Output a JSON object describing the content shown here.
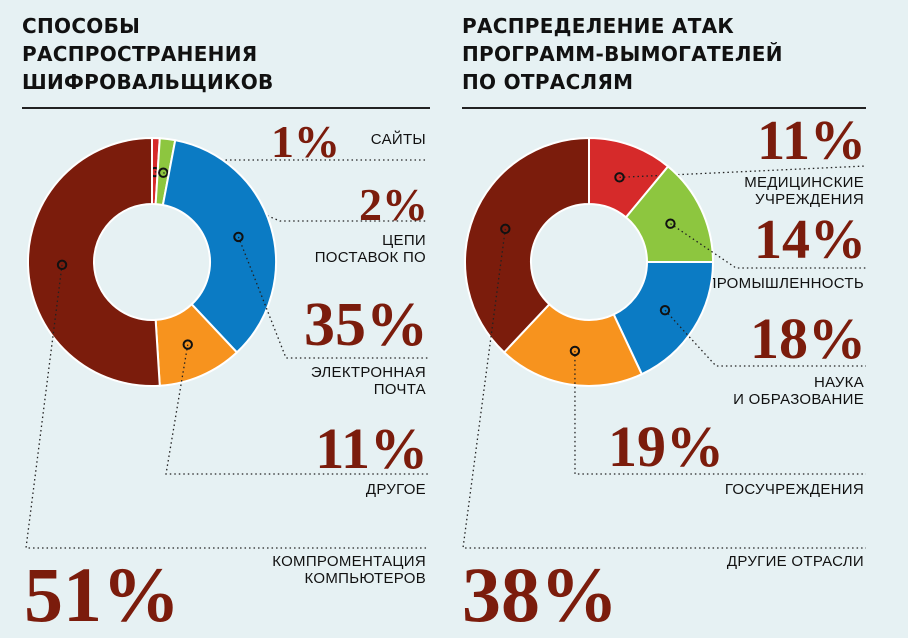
{
  "chart_data": [
    {
      "type": "pie",
      "title": [
        "СПОСОБЫ",
        "РАСПРОСТРАНЕНИЯ",
        "ШИФРОВАЛЬЩИКОВ"
      ],
      "slices": [
        {
          "pct": "1%",
          "value": 1,
          "label": [
            "САЙТЫ"
          ],
          "color": "#d62a2a"
        },
        {
          "pct": "2%",
          "value": 2,
          "label": [
            "ЦЕПИ",
            "ПОСТАВОК ПО"
          ],
          "color": "#8dc63f"
        },
        {
          "pct": "35%",
          "value": 35,
          "label": [
            "ЭЛЕКТРОННАЯ",
            "ПОЧТА"
          ],
          "color": "#0b7bc4"
        },
        {
          "pct": "11%",
          "value": 11,
          "label": [
            "ДРУГОЕ"
          ],
          "color": "#f7931e"
        },
        {
          "pct": "51%",
          "value": 51,
          "label": [
            "КОМПРОМЕНТАЦИЯ",
            "КОМПЬЮТЕРОВ"
          ],
          "color": "#7b1c0c"
        }
      ]
    },
    {
      "type": "pie",
      "title": [
        "РАСПРЕДЕЛЕНИЕ АТАК",
        "ПРОГРАММ-ВЫМОГАТЕЛЕЙ",
        "ПО ОТРАСЛЯМ"
      ],
      "slices": [
        {
          "pct": "11%",
          "value": 11,
          "label": [
            "МЕДИЦИНСКИЕ",
            "УЧРЕЖДЕНИЯ"
          ],
          "color": "#d62a2a"
        },
        {
          "pct": "14%",
          "value": 14,
          "label": [
            "ПРОМЫШЛЕННОСТЬ"
          ],
          "color": "#8dc63f"
        },
        {
          "pct": "18%",
          "value": 18,
          "label": [
            "НАУКА",
            "И ОБРАЗОВАНИЕ"
          ],
          "color": "#0b7bc4"
        },
        {
          "pct": "19%",
          "value": 19,
          "label": [
            "ГОСУЧРЕЖДЕНИЯ"
          ],
          "color": "#f7931e"
        },
        {
          "pct": "38%",
          "value": 38,
          "label": [
            "ДРУГИЕ ОТРАСЛИ"
          ],
          "color": "#7b1c0c"
        }
      ]
    }
  ]
}
